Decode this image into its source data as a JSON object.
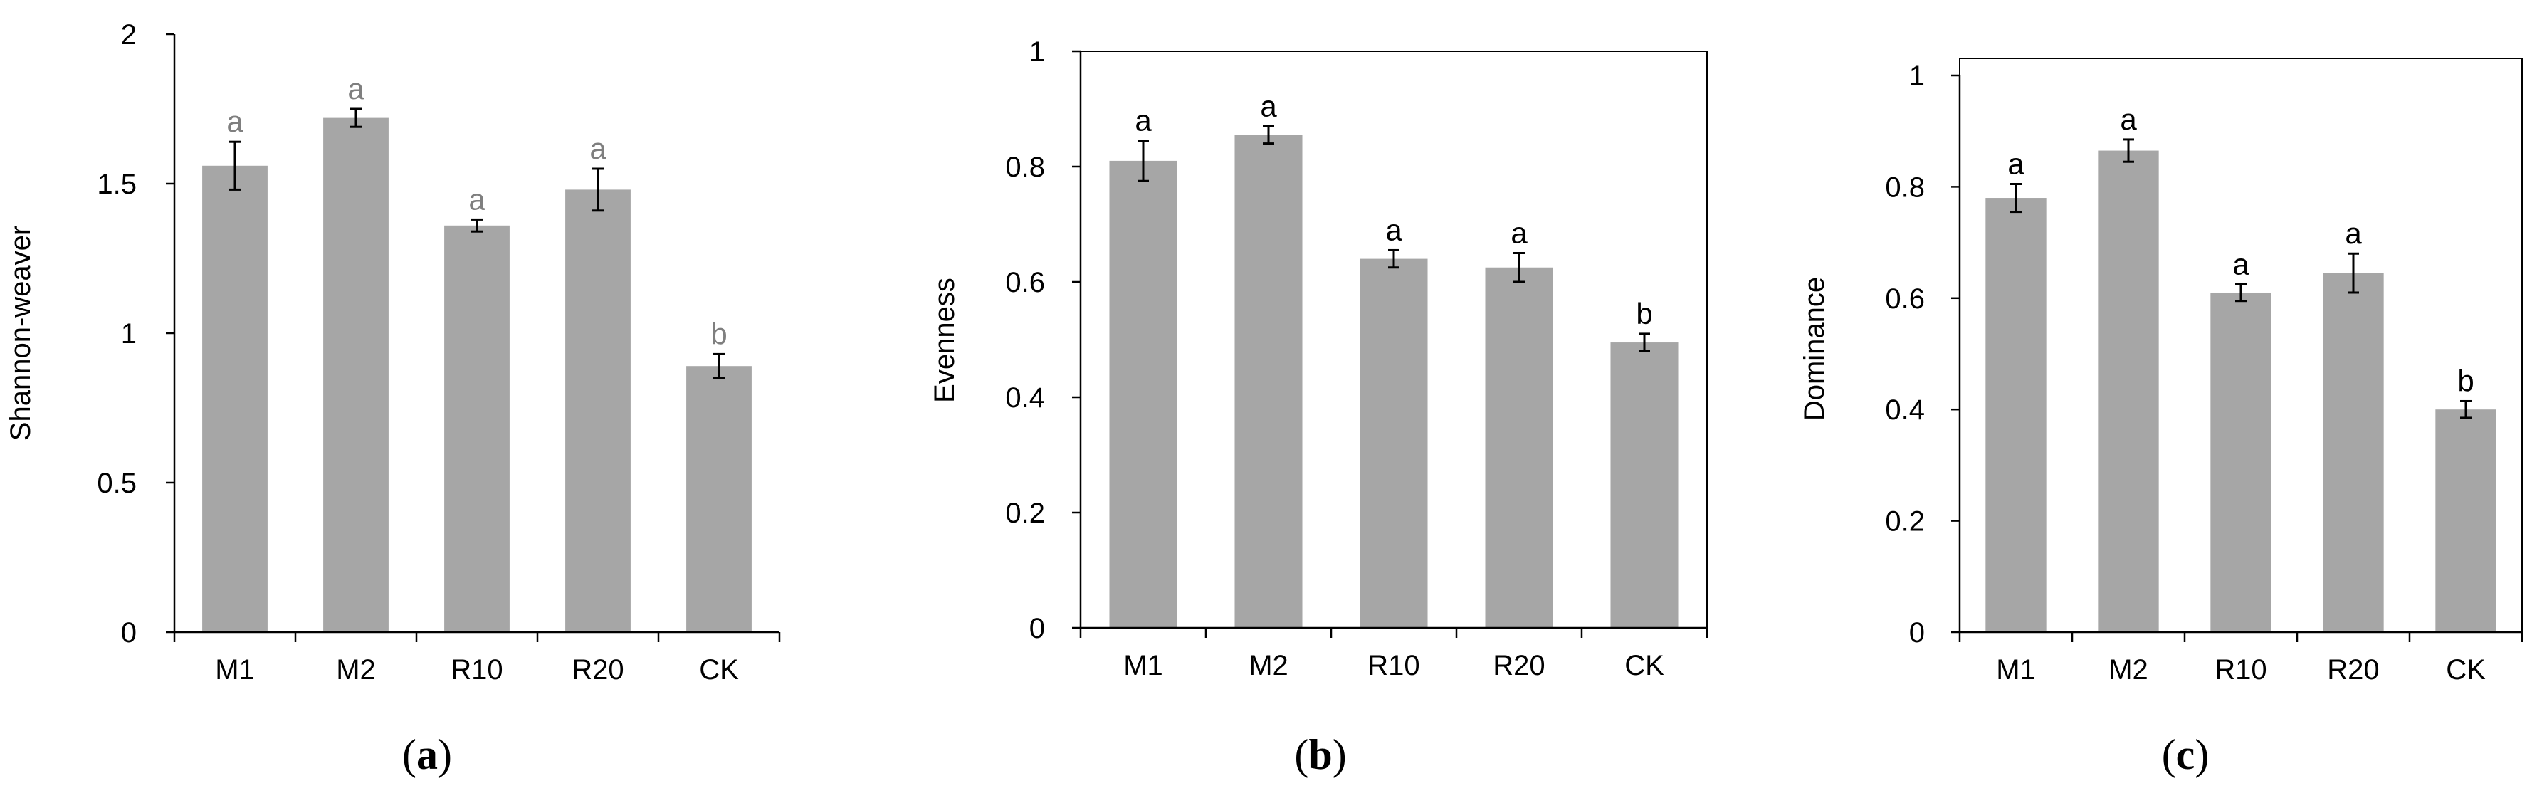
{
  "chart_data": [
    {
      "type": "bar",
      "panel_label": [
        "(",
        "a",
        ")"
      ],
      "categories": [
        "M1",
        "M2",
        "R10",
        "R20",
        "CK"
      ],
      "values": [
        1.56,
        1.72,
        1.36,
        1.48,
        0.89
      ],
      "errors": [
        0.08,
        0.03,
        0.02,
        0.07,
        0.04
      ],
      "significance": [
        "a",
        "a",
        "a",
        "a",
        "b"
      ],
      "ylabel": "Shannon-weaver",
      "ylim": [
        0,
        2
      ],
      "yticks": [
        0,
        0.5,
        1,
        1.5,
        2
      ],
      "ytick_labels": [
        "0",
        "0.5",
        "1",
        "1.5",
        "2"
      ],
      "bar_color": "#a6a6a6",
      "sig_color": "#7f7f7f",
      "frame": false
    },
    {
      "type": "bar",
      "panel_label": [
        "(",
        "b",
        ")"
      ],
      "categories": [
        "M1",
        "M2",
        "R10",
        "R20",
        "CK"
      ],
      "values": [
        0.81,
        0.855,
        0.64,
        0.625,
        0.495
      ],
      "errors": [
        0.035,
        0.015,
        0.015,
        0.025,
        0.015
      ],
      "significance": [
        "a",
        "a",
        "a",
        "a",
        "b"
      ],
      "ylabel": "Evenness",
      "ylim": [
        0,
        1
      ],
      "yticks": [
        0,
        0.2,
        0.4,
        0.6,
        0.8,
        1
      ],
      "ytick_labels": [
        "0",
        "0.2",
        "0.4",
        "0.6",
        "0.8",
        "1"
      ],
      "bar_color": "#a6a6a6",
      "sig_color": "#000000",
      "frame": true
    },
    {
      "type": "bar",
      "panel_label": [
        "(",
        "c",
        ")"
      ],
      "categories": [
        "M1",
        "M2",
        "R10",
        "R20",
        "CK"
      ],
      "values": [
        0.78,
        0.865,
        0.61,
        0.645,
        0.4
      ],
      "errors": [
        0.025,
        0.02,
        0.015,
        0.035,
        0.015
      ],
      "significance": [
        "a",
        "a",
        "a",
        "a",
        "b"
      ],
      "ylabel": "Dominance",
      "ylim": [
        0,
        1
      ],
      "yticks": [
        0,
        0.2,
        0.4,
        0.6,
        0.8,
        1
      ],
      "ytick_labels": [
        "0",
        "0.2",
        "0.4",
        "0.6",
        "0.8",
        "1"
      ],
      "bar_color": "#a6a6a6",
      "sig_color": "#000000",
      "frame": true
    }
  ]
}
